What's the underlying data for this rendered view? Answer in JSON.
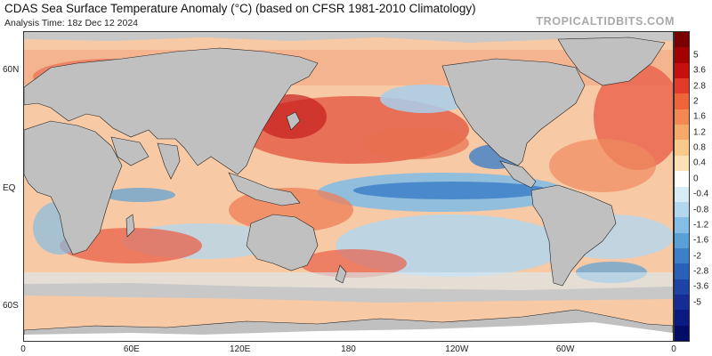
{
  "header": {
    "title": "CDAS Sea Surface Temperature Anomaly (°C) (based on CFSR 1981-2010 Climatology)",
    "analysis_time": "Analysis Time: 18z Dec 12 2024",
    "brand": "TROPICALTIDBITS.COM"
  },
  "map": {
    "projection": "cylindrical equidistant",
    "lon_range": [
      0,
      360
    ],
    "lat_range": [
      -78,
      80
    ],
    "land_color": "#c0c0c0",
    "ice_color": "#c8c8c8",
    "lat_labels": [
      {
        "text": "60N",
        "lat": 60
      },
      {
        "text": "EQ",
        "lat": 0
      },
      {
        "text": "60S",
        "lat": -60
      }
    ],
    "lon_labels": [
      {
        "text": "0",
        "lon": 0
      },
      {
        "text": "60E",
        "lon": 60
      },
      {
        "text": "120E",
        "lon": 120
      },
      {
        "text": "180",
        "lon": 180
      },
      {
        "text": "120W",
        "lon": 240
      },
      {
        "text": "60W",
        "lon": 300
      },
      {
        "text": "0",
        "lon": 360
      }
    ]
  },
  "colorbar": {
    "ticks": [
      "5",
      "3.6",
      "2.8",
      "2",
      "1.6",
      "1.2",
      "0.8",
      "0.4",
      "0",
      "-0.4",
      "-0.8",
      "-1.2",
      "-1.6",
      "-2",
      "-2.8",
      "-3.6",
      "-5"
    ],
    "colors": [
      "#7a0000",
      "#a30000",
      "#c80f0f",
      "#e43a2a",
      "#f0643a",
      "#f48852",
      "#f7a96b",
      "#f9c98c",
      "#fbe2b6",
      "#ffffff",
      "#d8ecf6",
      "#b3d7ef",
      "#86bde4",
      "#5a9fd6",
      "#3d80c8",
      "#2a60b8",
      "#1d43a6",
      "#142c93",
      "#0b1a80",
      "#050c66"
    ]
  }
}
